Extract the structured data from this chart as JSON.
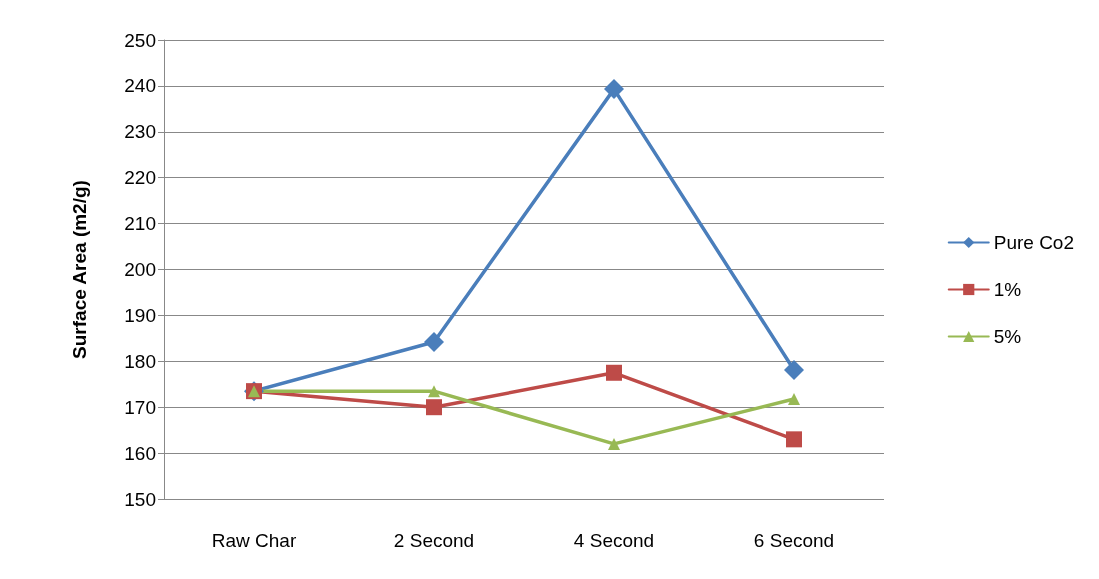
{
  "chart_data": {
    "type": "line",
    "ylabel": "Surface Area (m2/g)",
    "categories": [
      "Raw Char",
      "2 Second",
      "4 Second",
      "6 Second"
    ],
    "series": [
      {
        "name": "Pure Co2",
        "color": "#4a7ebb",
        "marker": "diamond",
        "values": [
          173.5,
          184.2,
          239.3,
          178.1
        ]
      },
      {
        "name": "1%",
        "color": "#be4b48",
        "marker": "square",
        "values": [
          173.5,
          170,
          177.5,
          163
        ]
      },
      {
        "name": "5%",
        "color": "#98b954",
        "marker": "triangle",
        "values": [
          173.5,
          173.5,
          162,
          171.8
        ]
      }
    ],
    "ylim": [
      150,
      250
    ],
    "yticks": [
      150,
      160,
      170,
      180,
      190,
      200,
      210,
      220,
      230,
      240,
      250
    ],
    "grid": "y",
    "legend": "right",
    "line_style": "solid"
  }
}
